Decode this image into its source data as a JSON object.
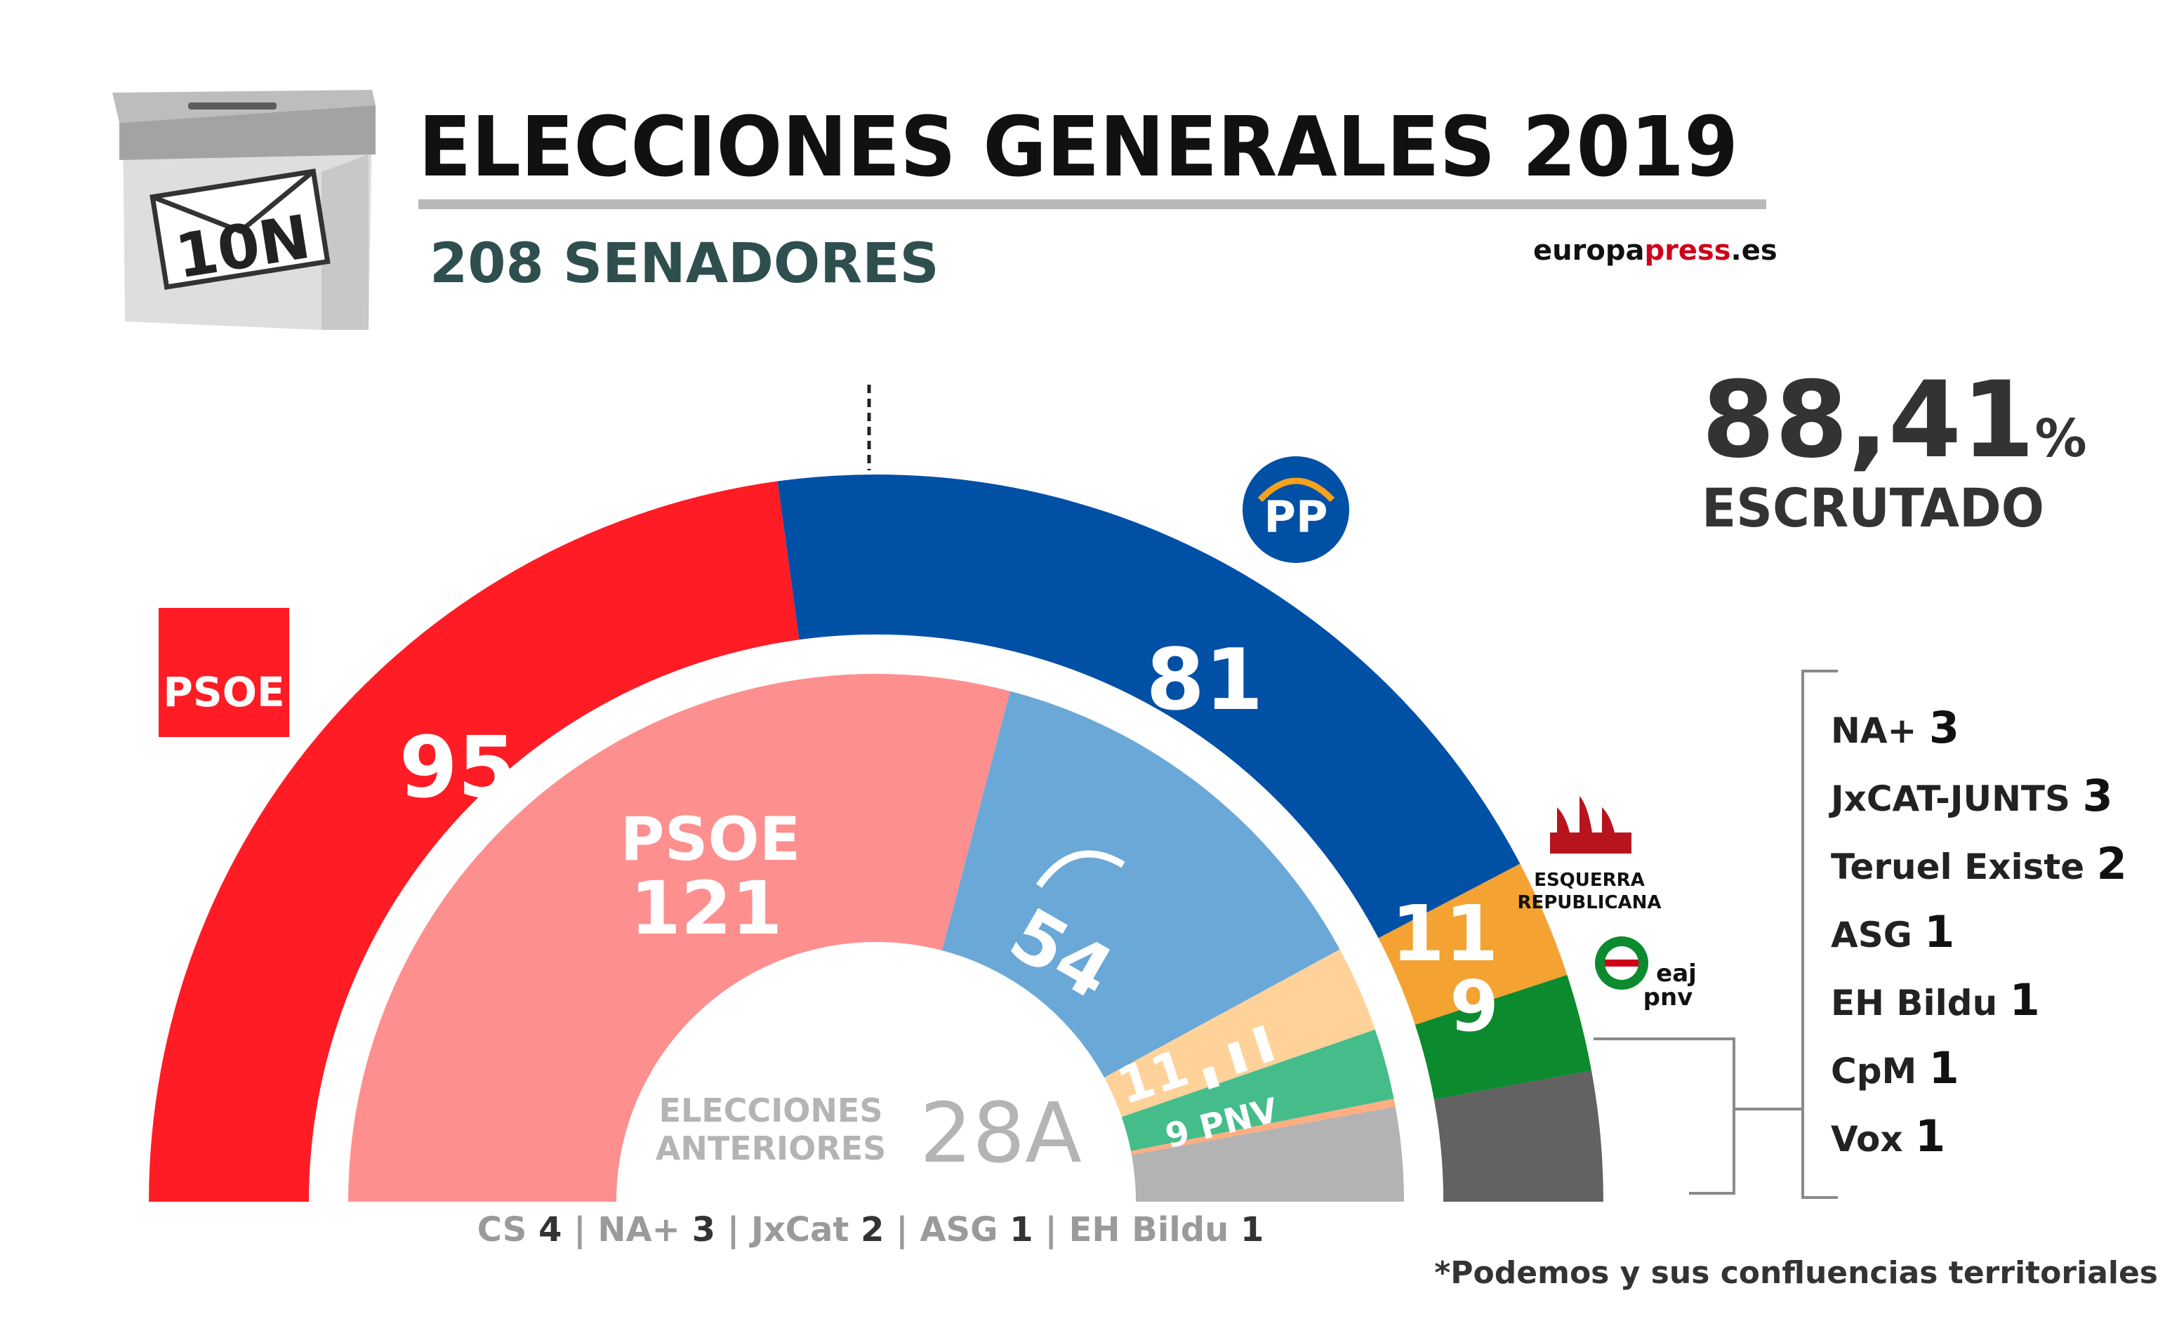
{
  "header": {
    "title": "ELECCIONES GENERALES 2019",
    "subtitle": "208 SENADORES",
    "source": {
      "part1": "europa",
      "part2": "press",
      "part3": ".es"
    },
    "box_label": "10N"
  },
  "scrutiny": {
    "value": "88,41",
    "unit": "%",
    "label": "ESCRUTADO"
  },
  "previous": {
    "line1": "ELECCIONES",
    "line2": "ANTERIORES",
    "tag": "28A"
  },
  "previous_others": [
    {
      "name": "CS",
      "seats": "4"
    },
    {
      "name": "NA+",
      "seats": "3"
    },
    {
      "name": "JxCat",
      "seats": "2"
    },
    {
      "name": "ASG",
      "seats": "1"
    },
    {
      "name": "EH Bildu",
      "seats": "1"
    }
  ],
  "others_list": [
    {
      "name": "NA+",
      "seats": "3"
    },
    {
      "name": "JxCAT-JUNTS",
      "seats": "3"
    },
    {
      "name": "Teruel Existe",
      "seats": "2"
    },
    {
      "name": "ASG",
      "seats": "1"
    },
    {
      "name": "EH Bildu",
      "seats": "1"
    },
    {
      "name": "CpM",
      "seats": "1"
    },
    {
      "name": "Vox",
      "seats": "1"
    }
  ],
  "footnote": "*Podemos y sus confluencias territoriales",
  "logos": {
    "psoe": "PSOE",
    "pp": "PP",
    "erc_line1": "ESQUERRA",
    "erc_line2": "REPUBLICANA",
    "pnv_line1": "eaj",
    "pnv_line2": "pnv"
  },
  "chart_data": [
    {
      "type": "pie",
      "subtype": "hemicycle",
      "election": "10N",
      "total": 208,
      "series": [
        {
          "label": "95",
          "value": 95,
          "color": "#ff1c24"
        },
        {
          "label": "81",
          "value": 81,
          "color": "#0050a6"
        },
        {
          "label": "11",
          "value": 11,
          "color": "#f4a232"
        },
        {
          "label": "9",
          "value": 9,
          "color": "#0b8a2e"
        },
        {
          "label": "",
          "value": 12,
          "color": "#626262"
        }
      ]
    },
    {
      "type": "pie",
      "subtype": "hemicycle",
      "election": "28A",
      "total": 208,
      "series": [
        {
          "label": "121",
          "name": "PSOE",
          "value": 121,
          "color": "#fe8f8f"
        },
        {
          "label": "54",
          "value": 54,
          "color": "#6aa8d8"
        },
        {
          "label": "11",
          "value": 11,
          "color": "#ffd29a"
        },
        {
          "label": "9 PNV",
          "value": 9,
          "color": "#44bd8b"
        },
        {
          "label": "",
          "value": 1,
          "color": "#ffae82"
        },
        {
          "label": "",
          "value": 12,
          "color": "#b3b3b3"
        }
      ]
    }
  ],
  "colors": {
    "pp_blue": "#0050a6",
    "psoe_red": "#ff1c24",
    "dark_text": "#222222",
    "subtitle": "#2f4f4f"
  }
}
